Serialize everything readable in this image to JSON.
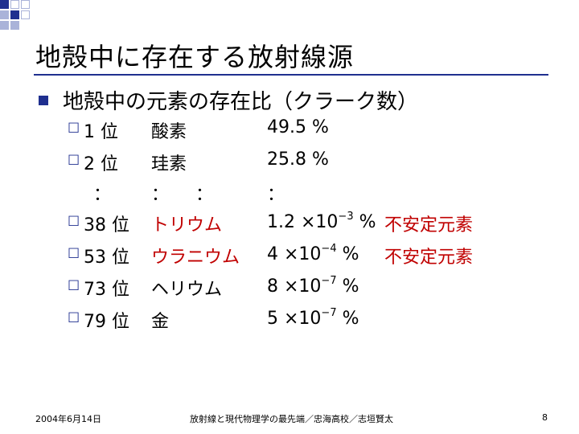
{
  "slide": {
    "title": "地殻中に存在する放射線源",
    "main_bullet": "地殻中の元素の存在比（クラーク数）",
    "rows": [
      {
        "rank": "1 位",
        "name": "酸素",
        "value": "49.5 %",
        "note": ""
      },
      {
        "rank": "2 位",
        "name": "珪素",
        "value": "25.8 %",
        "note": ""
      },
      {
        "rank": "：",
        "name": "：　　：",
        "value": "：",
        "note": ""
      },
      {
        "rank": "38 位",
        "name": "トリウム",
        "value_base": "1.2 ×10",
        "value_exp": "−3",
        "value_unit": " %",
        "note": "不安定元素"
      },
      {
        "rank": "53 位",
        "name": "ウラニウム",
        "value_base": "4 ×10",
        "value_exp": "−4",
        "value_unit": " %",
        "note": "不安定元素"
      },
      {
        "rank": "73 位",
        "name": "ヘリウム",
        "value_base": "8 ×10",
        "value_exp": "−7",
        "value_unit": " %",
        "note": ""
      },
      {
        "rank": "79 位",
        "name": "金",
        "value_base": "5 ×10",
        "value_exp": "−7",
        "value_unit": " %",
        "note": ""
      }
    ],
    "checkbox_glyph": "☐"
  },
  "footer": {
    "date": "2004年6月14日",
    "center": "放射線と現代物理学の最先端／忠海高校／志垣賢太",
    "page": "8"
  },
  "colors": {
    "accent": "#1f2f8f",
    "highlight": "#c00000"
  }
}
